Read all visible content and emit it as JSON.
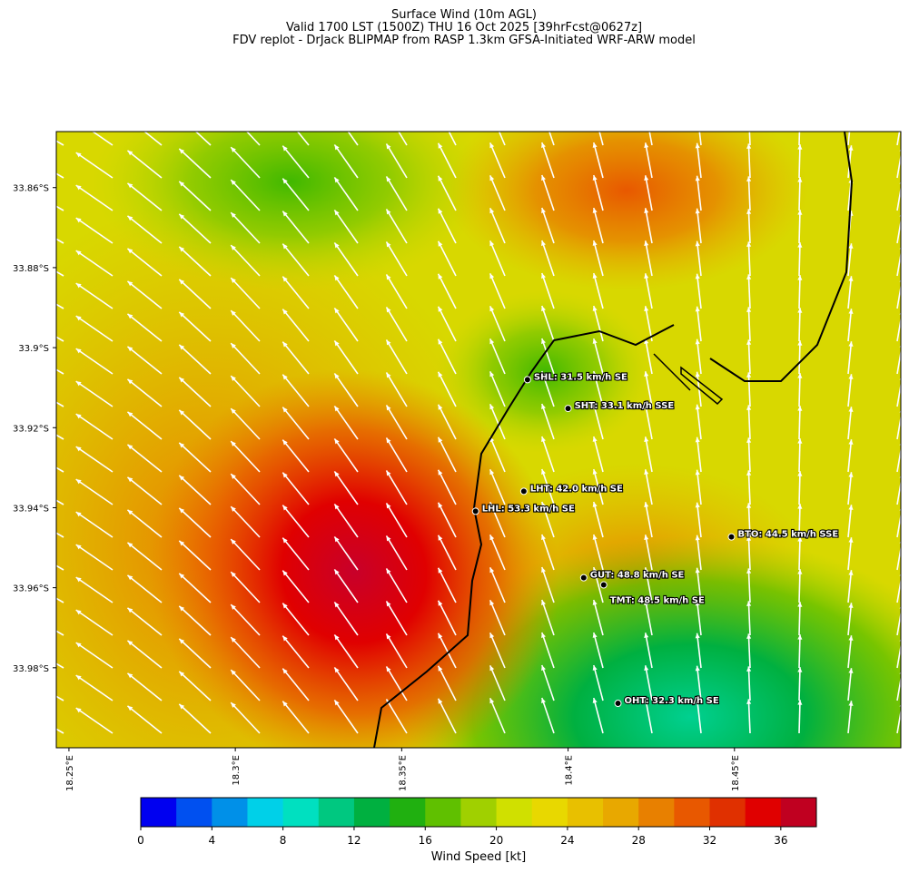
{
  "title_lines": [
    "Surface Wind (10m AGL)",
    "Valid 1700 LST (1500Z) THU 16 Oct 2025 [39hrFcst@0627z]",
    "FDV replot - DrJack BLIPMAP from RASP 1.3km GFSA-Initiated WRF-ARW model"
  ],
  "map": {
    "xlim": [
      18.2462,
      18.5
    ],
    "ylim": [
      34.0,
      33.846
    ],
    "xticks": [
      {
        "value": 18.25,
        "label": "18.25°E"
      },
      {
        "value": 18.3,
        "label": "18.3°E"
      },
      {
        "value": 18.35,
        "label": "18.35°E"
      },
      {
        "value": 18.4,
        "label": "18.4°E"
      },
      {
        "value": 18.45,
        "label": "18.45°E"
      }
    ],
    "yticks": [
      {
        "value": 33.86,
        "label": "33.86°S"
      },
      {
        "value": 33.88,
        "label": "33.88°S"
      },
      {
        "value": 33.9,
        "label": "33.9°S"
      },
      {
        "value": 33.92,
        "label": "33.92°S"
      },
      {
        "value": 33.94,
        "label": "33.94°S"
      },
      {
        "value": 33.96,
        "label": "33.96°S"
      },
      {
        "value": 33.98,
        "label": "33.98°S"
      }
    ],
    "stations": [
      {
        "label": "SHL: 31.5 km/h SE",
        "lon": 18.3878,
        "lat": 33.908
      },
      {
        "label": "SHT: 33.1 km/h SSE",
        "lon": 18.4,
        "lat": 33.9152
      },
      {
        "label": "LHT: 42.0 km/h SE",
        "lon": 18.3867,
        "lat": 33.9359
      },
      {
        "label": "LHL: 53.3 km/h SE",
        "lon": 18.3722,
        "lat": 33.9409
      },
      {
        "label": "BTO: 44.5 km/h SSE",
        "lon": 18.4491,
        "lat": 33.9473
      },
      {
        "label": "GUT: 48.8 km/h SE",
        "lon": 18.4047,
        "lat": 33.9575
      },
      {
        "label": "TMT: 48.5 km/h SE",
        "lon": 18.4107,
        "lat": 33.9593
      },
      {
        "label": "OHT: 32.3 km/h SE",
        "lon": 18.415,
        "lat": 33.9889
      }
    ]
  },
  "colorbar": {
    "label": "Wind Speed [kt]",
    "range": [
      0,
      38
    ],
    "ticks": [
      0,
      4,
      8,
      12,
      16,
      20,
      24,
      28,
      32,
      36
    ],
    "colors": [
      "#0000f0",
      "#0050f0",
      "#0090e8",
      "#00d0e8",
      "#00e0c0",
      "#00c880",
      "#00b040",
      "#20b010",
      "#60c000",
      "#a0d000",
      "#d0e000",
      "#e8d800",
      "#e8c000",
      "#e8a800",
      "#e88000",
      "#e85800",
      "#e03000",
      "#e00000",
      "#c00020"
    ]
  }
}
